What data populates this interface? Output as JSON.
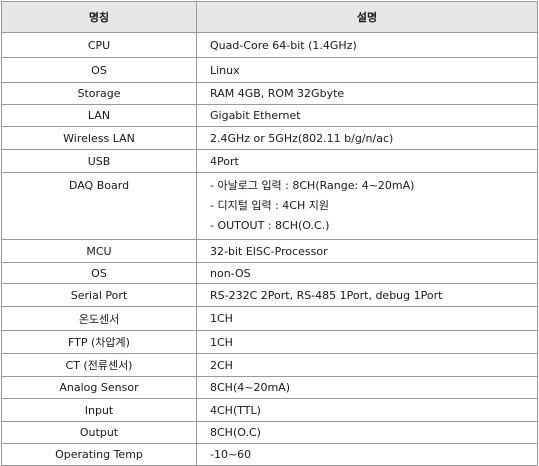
{
  "table": {
    "headers": [
      "명칭",
      "설명"
    ],
    "rows": [
      {
        "name": "CPU",
        "desc": [
          "Quad-Core 64-bit (1.4GHz)"
        ]
      },
      {
        "name": "OS",
        "desc": [
          "Linux"
        ]
      },
      {
        "name": "Storage",
        "desc": [
          "RAM 4GB, ROM 32Gbyte"
        ]
      },
      {
        "name": "LAN",
        "desc": [
          "Gigabit Ethernet"
        ]
      },
      {
        "name": "Wireless LAN",
        "desc": [
          "2.4GHz or 5GHz(802.11 b/g/n/ac)"
        ]
      },
      {
        "name": "USB",
        "desc": [
          "4Port"
        ]
      },
      {
        "name": "DAQ Board",
        "desc": [
          "- 아날로그 입력 : 8CH(Range: 4~20mA)",
          "- 디지털 입력 : 4CH 지원",
          "- OUTOUT : 8CH(O.C.)"
        ]
      },
      {
        "name": "MCU",
        "desc": [
          "32-bit EISC-Processor"
        ]
      },
      {
        "name": "OS",
        "desc": [
          "non-OS"
        ]
      },
      {
        "name": "Serial Port",
        "desc": [
          "RS-232C 2Port, RS-485 1Port, debug 1Port"
        ]
      },
      {
        "name": "온도센서",
        "desc": [
          "1CH"
        ]
      },
      {
        "name": "FTP (차압계)",
        "desc": [
          "1CH"
        ]
      },
      {
        "name": "CT (전류센서)",
        "desc": [
          "2CH"
        ]
      },
      {
        "name": "Analog Sensor",
        "desc": [
          "8CH(4~20mA)"
        ]
      },
      {
        "name": "Input",
        "desc": [
          "4CH(TTL)"
        ]
      },
      {
        "name": "Output",
        "desc": [
          "8CH(O.C)"
        ]
      },
      {
        "name": "Operating Temp",
        "desc": [
          "-10~60"
        ]
      }
    ]
  }
}
